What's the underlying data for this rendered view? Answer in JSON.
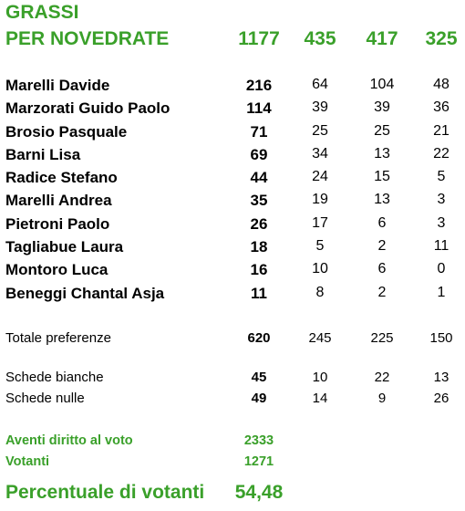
{
  "title_line1": "GRASSI",
  "title_line2": "PER NOVEDRATE",
  "header_totals": [
    "1177",
    "435",
    "417",
    "325"
  ],
  "candidates": [
    {
      "name": "Marelli Davide",
      "total": "216",
      "s1": "64",
      "s2": "104",
      "s3": "48"
    },
    {
      "name": "Marzorati Guido Paolo",
      "total": "114",
      "s1": "39",
      "s2": "39",
      "s3": "36"
    },
    {
      "name": "Brosio Pasquale",
      "total": "71",
      "s1": "25",
      "s2": "25",
      "s3": "21"
    },
    {
      "name": "Barni Lisa",
      "total": "69",
      "s1": "34",
      "s2": "13",
      "s3": "22"
    },
    {
      "name": "Radice Stefano",
      "total": "44",
      "s1": "24",
      "s2": "15",
      "s3": "5"
    },
    {
      "name": "Marelli Andrea",
      "total": "35",
      "s1": "19",
      "s2": "13",
      "s3": "3"
    },
    {
      "name": "Pietroni Paolo",
      "total": "26",
      "s1": "17",
      "s2": "6",
      "s3": "3"
    },
    {
      "name": "Tagliabue Laura",
      "total": "18",
      "s1": "5",
      "s2": "2",
      "s3": "11"
    },
    {
      "name": "Montoro Luca",
      "total": "16",
      "s1": "10",
      "s2": "6",
      "s3": "0"
    },
    {
      "name": "Beneggi Chantal Asja",
      "total": "11",
      "s1": "8",
      "s2": "2",
      "s3": "1"
    }
  ],
  "totale_preferenze": {
    "label": "Totale preferenze",
    "total": "620",
    "s1": "245",
    "s2": "225",
    "s3": "150"
  },
  "schede_bianche": {
    "label": "Schede bianche",
    "total": "45",
    "s1": "10",
    "s2": "22",
    "s3": "13"
  },
  "schede_nulle": {
    "label": "Schede nulle",
    "total": "49",
    "s1": "14",
    "s2": "9",
    "s3": "26"
  },
  "aventi_diritto": {
    "label": "Aventi diritto al voto",
    "value": "2333"
  },
  "votanti": {
    "label": "Votanti",
    "value": "1271"
  },
  "percentuale": {
    "label": "Percentuale di votanti",
    "value": "54,48"
  },
  "colors": {
    "accent_green": "#3aa02a",
    "text": "#000000"
  }
}
